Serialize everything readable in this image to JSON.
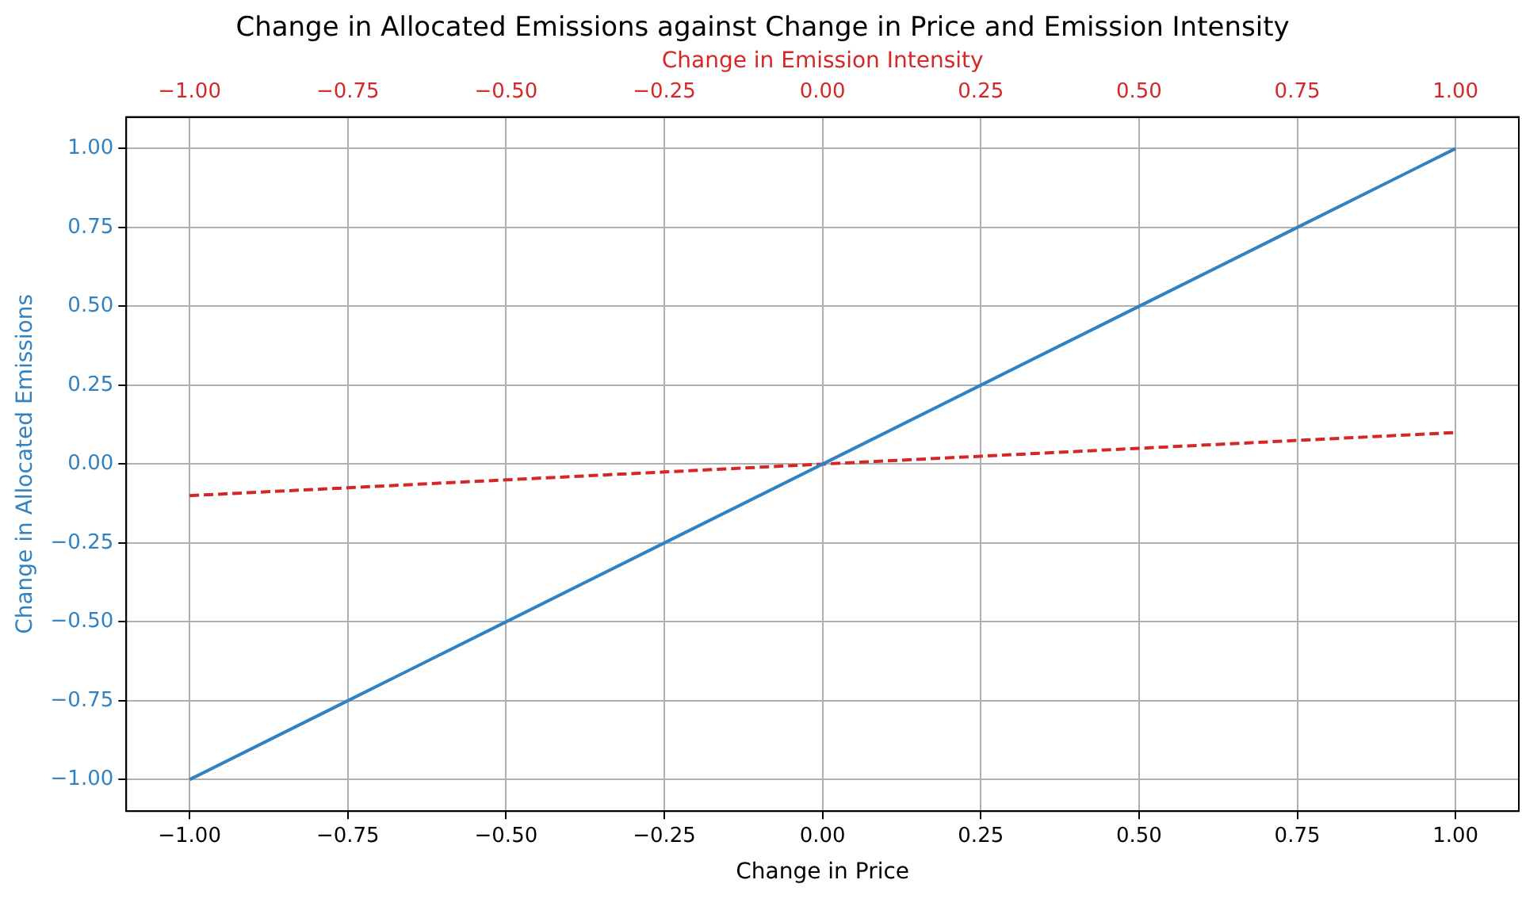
{
  "chart_data": {
    "type": "line",
    "title": "Change in Allocated Emissions against Change in Price and Emission Intensity",
    "xlabel": "Change in Price",
    "ylabel": "Change in Allocated Emissions",
    "x2label": "Change in Emission Intensity",
    "xlim": [
      -1.1,
      1.1
    ],
    "x2lim": [
      -1.1,
      1.1
    ],
    "ylim": [
      -1.1,
      1.1
    ],
    "xticks": [
      {
        "value": -1,
        "label": "−1.00"
      },
      {
        "value": -0.75,
        "label": "−0.75"
      },
      {
        "value": -0.5,
        "label": "−0.50"
      },
      {
        "value": -0.25,
        "label": "−0.25"
      },
      {
        "value": 0,
        "label": "0.00"
      },
      {
        "value": 0.25,
        "label": "0.25"
      },
      {
        "value": 0.5,
        "label": "0.50"
      },
      {
        "value": 0.75,
        "label": "0.75"
      },
      {
        "value": 1,
        "label": "1.00"
      }
    ],
    "x2ticks": [
      {
        "value": -1,
        "label": "−1.00"
      },
      {
        "value": -0.75,
        "label": "−0.75"
      },
      {
        "value": -0.5,
        "label": "−0.50"
      },
      {
        "value": -0.25,
        "label": "−0.25"
      },
      {
        "value": 0,
        "label": "0.00"
      },
      {
        "value": 0.25,
        "label": "0.25"
      },
      {
        "value": 0.5,
        "label": "0.50"
      },
      {
        "value": 0.75,
        "label": "0.75"
      },
      {
        "value": 1,
        "label": "1.00"
      }
    ],
    "yticks": [
      {
        "value": -1,
        "label": "−1.00"
      },
      {
        "value": -0.75,
        "label": "−0.75"
      },
      {
        "value": -0.5,
        "label": "−0.50"
      },
      {
        "value": -0.25,
        "label": "−0.25"
      },
      {
        "value": 0,
        "label": "0.00"
      },
      {
        "value": 0.25,
        "label": "0.25"
      },
      {
        "value": 0.5,
        "label": "0.50"
      },
      {
        "value": 0.75,
        "label": "0.75"
      },
      {
        "value": 1,
        "label": "1.00"
      }
    ],
    "grid": true,
    "legend": false,
    "marker": "none",
    "series": [
      {
        "color": "#3182c3",
        "x": [
          -1,
          -0.75,
          -0.5,
          -0.25,
          0,
          0.25,
          0.5,
          0.75,
          1
        ],
        "values": [
          -1,
          -0.75,
          -0.5,
          -0.25,
          0,
          0.25,
          0.5,
          0.75,
          1
        ],
        "line_style": "solid"
      },
      {
        "color": "#d62728",
        "x": [
          -1,
          -0.75,
          -0.5,
          -0.25,
          0,
          0.25,
          0.5,
          0.75,
          1
        ],
        "values": [
          -0.1,
          -0.075,
          -0.05,
          -0.025,
          0,
          0.025,
          0.05,
          0.075,
          0.1
        ],
        "line_style": "dashed",
        "axis": "x2"
      }
    ]
  }
}
